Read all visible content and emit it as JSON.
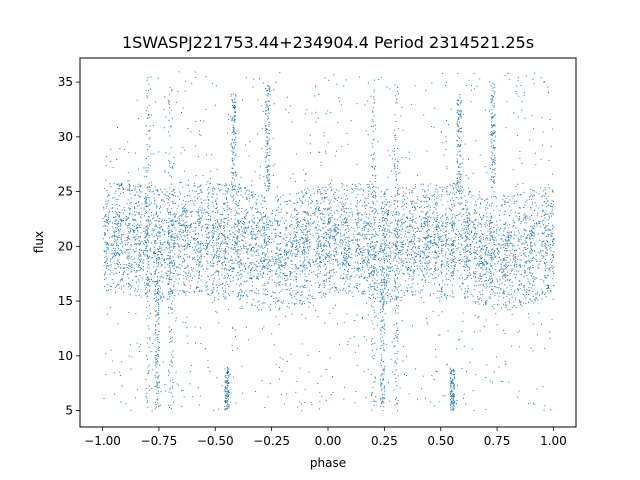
{
  "chart_data": {
    "type": "scatter",
    "title": "1SWASPJ221753.44+234904.4 Period 2314521.25s",
    "xlabel": "phase",
    "ylabel": "flux",
    "xlim": [
      -1.1,
      1.1
    ],
    "ylim": [
      3.5,
      37.2
    ],
    "x_ticks": [
      -1.0,
      -0.75,
      -0.5,
      -0.25,
      0.0,
      0.25,
      0.5,
      0.75,
      1.0
    ],
    "x_tick_labels": [
      "−1.00",
      "−0.75",
      "−0.50",
      "−0.25",
      "0.00",
      "0.25",
      "0.50",
      "0.75",
      "1.00"
    ],
    "y_ticks": [
      5,
      10,
      15,
      20,
      25,
      30,
      35
    ],
    "y_tick_labels": [
      "5",
      "10",
      "15",
      "20",
      "25",
      "30",
      "35"
    ],
    "grid": false,
    "legend": "none",
    "marker_color": "#1f77b4",
    "marker_size": 1,
    "band_summary": [
      {
        "x": -1.0,
        "y_low": 16.5,
        "y_high": 25.0,
        "y_median": 21.0
      },
      {
        "x": -0.9,
        "y_low": 16.5,
        "y_high": 25.0,
        "y_median": 21.0
      },
      {
        "x": -0.8,
        "y_low": 16.0,
        "y_high": 25.0,
        "y_median": 20.5
      },
      {
        "x": -0.75,
        "y_low": 15.5,
        "y_high": 24.5,
        "y_median": 20.0
      },
      {
        "x": -0.7,
        "y_low": 16.0,
        "y_high": 24.5,
        "y_median": 20.5
      },
      {
        "x": -0.6,
        "y_low": 16.5,
        "y_high": 25.0,
        "y_median": 21.0
      },
      {
        "x": -0.5,
        "y_low": 16.0,
        "y_high": 25.0,
        "y_median": 20.5
      },
      {
        "x": -0.4,
        "y_low": 16.0,
        "y_high": 25.0,
        "y_median": 20.5
      },
      {
        "x": -0.3,
        "y_low": 15.0,
        "y_high": 24.0,
        "y_median": 19.5
      },
      {
        "x": -0.2,
        "y_low": 15.0,
        "y_high": 24.0,
        "y_median": 19.5
      },
      {
        "x": -0.1,
        "y_low": 15.5,
        "y_high": 24.5,
        "y_median": 20.0
      },
      {
        "x": 0.0,
        "y_low": 16.5,
        "y_high": 25.0,
        "y_median": 21.0
      },
      {
        "x": 0.1,
        "y_low": 16.5,
        "y_high": 25.0,
        "y_median": 21.0
      },
      {
        "x": 0.2,
        "y_low": 16.0,
        "y_high": 25.0,
        "y_median": 20.5
      },
      {
        "x": 0.25,
        "y_low": 15.5,
        "y_high": 24.5,
        "y_median": 20.0
      },
      {
        "x": 0.3,
        "y_low": 16.0,
        "y_high": 24.5,
        "y_median": 20.5
      },
      {
        "x": 0.4,
        "y_low": 16.5,
        "y_high": 25.0,
        "y_median": 21.0
      },
      {
        "x": 0.5,
        "y_low": 16.0,
        "y_high": 25.0,
        "y_median": 20.5
      },
      {
        "x": 0.6,
        "y_low": 16.0,
        "y_high": 25.0,
        "y_median": 20.5
      },
      {
        "x": 0.7,
        "y_low": 15.0,
        "y_high": 24.0,
        "y_median": 19.5
      },
      {
        "x": 0.8,
        "y_low": 15.0,
        "y_high": 24.0,
        "y_median": 19.5
      },
      {
        "x": 0.9,
        "y_low": 15.5,
        "y_high": 24.5,
        "y_median": 20.0
      },
      {
        "x": 1.0,
        "y_low": 16.5,
        "y_high": 25.0,
        "y_median": 21.0
      }
    ],
    "outlier_streaks": [
      {
        "x": -0.8,
        "y_low": 5.0,
        "y_high": 35.5
      },
      {
        "x": -0.76,
        "y_low": 5.0,
        "y_high": 17.0
      },
      {
        "x": -0.7,
        "y_low": 5.0,
        "y_high": 35.0
      },
      {
        "x": -0.45,
        "y_low": 5.0,
        "y_high": 9.0
      },
      {
        "x": -0.42,
        "y_low": 25.0,
        "y_high": 34.0
      },
      {
        "x": -0.27,
        "y_low": 25.0,
        "y_high": 35.0
      },
      {
        "x": 0.2,
        "y_low": 5.0,
        "y_high": 35.5
      },
      {
        "x": 0.24,
        "y_low": 5.0,
        "y_high": 17.0
      },
      {
        "x": 0.3,
        "y_low": 5.0,
        "y_high": 35.0
      },
      {
        "x": 0.55,
        "y_low": 5.0,
        "y_high": 9.0
      },
      {
        "x": 0.58,
        "y_low": 25.0,
        "y_high": 34.0
      },
      {
        "x": 0.73,
        "y_low": 25.0,
        "y_high": 35.0
      }
    ]
  }
}
